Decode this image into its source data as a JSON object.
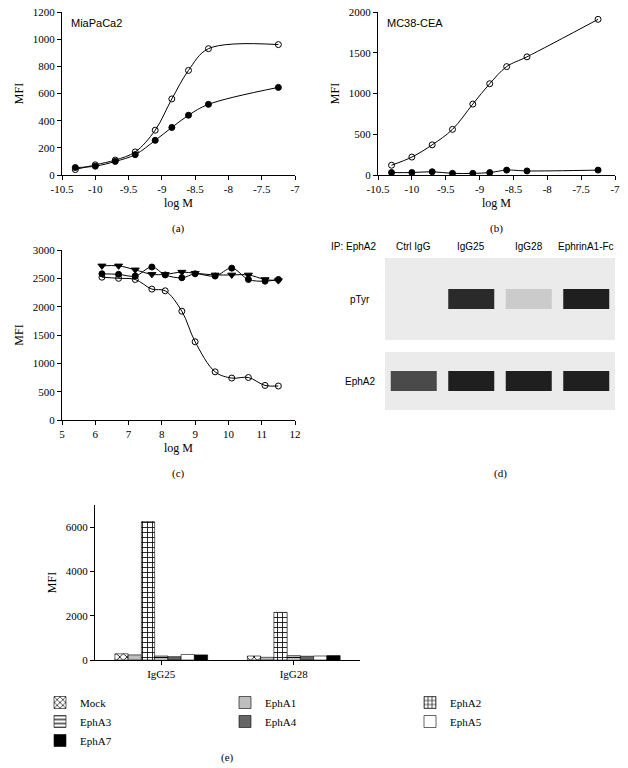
{
  "chart_data": [
    {
      "type": "scatter",
      "panel": "(a)",
      "title": "MiaPaCa2",
      "x_label": "log M",
      "y_label": "MFI",
      "xlim": [
        -10.5,
        -7
      ],
      "xticks": [
        -10.5,
        -10,
        -9.5,
        -9,
        -8.5,
        -8,
        -7.5,
        -7
      ],
      "ylim": [
        0,
        1200
      ],
      "yticks": [
        0,
        200,
        400,
        600,
        800,
        1000,
        1200
      ],
      "x": [
        -10.3,
        -10.0,
        -9.7,
        -9.4,
        -9.1,
        -8.85,
        -8.6,
        -8.3,
        -7.25
      ],
      "series": [
        {
          "color": "#000000",
          "marker": "open_circle",
          "line_style": "spline",
          "values": [
            40,
            75,
            110,
            170,
            330,
            560,
            770,
            930,
            960
          ]
        },
        {
          "color": "#000000",
          "marker": "circle",
          "line_style": "spline",
          "values": [
            55,
            65,
            100,
            150,
            255,
            350,
            440,
            520,
            645
          ]
        }
      ]
    },
    {
      "type": "scatter",
      "panel": "(b)",
      "title": "MC38-CEA",
      "x_label": "log M",
      "y_label": "MFI",
      "xlim": [
        -10.5,
        -7
      ],
      "xticks": [
        -10.5,
        -10,
        -9.5,
        -9,
        -8.5,
        -8,
        -7.5,
        -7
      ],
      "ylim": [
        0,
        2000
      ],
      "yticks": [
        0,
        500,
        1000,
        1500,
        2000
      ],
      "x": [
        -10.3,
        -10.0,
        -9.7,
        -9.4,
        -9.1,
        -8.85,
        -8.6,
        -8.3,
        -7.25
      ],
      "series": [
        {
          "color": "#000000",
          "marker": "open_circle",
          "line_style": "spline",
          "values": [
            120,
            220,
            370,
            560,
            870,
            1120,
            1330,
            1450,
            1910
          ]
        },
        {
          "color": "#000000",
          "marker": "circle",
          "line_style": "spline",
          "values": [
            30,
            30,
            40,
            20,
            20,
            30,
            60,
            50,
            60
          ]
        }
      ]
    },
    {
      "type": "scatter",
      "panel": "(c)",
      "x_label": "log M",
      "y_label": "MFI",
      "xlim": [
        5,
        12
      ],
      "xticks": [
        5,
        6,
        7,
        8,
        9,
        10,
        11,
        12
      ],
      "ylim": [
        0,
        3000
      ],
      "yticks": [
        0,
        500,
        1000,
        1500,
        2000,
        2500,
        3000
      ],
      "x": [
        6.2,
        6.7,
        7.2,
        7.7,
        8.1,
        8.6,
        9.0,
        9.6,
        10.1,
        10.6,
        11.1,
        11.5
      ],
      "series": [
        {
          "color": "#000000",
          "marker": "open_circle",
          "line_style": "spline",
          "values": [
            2520,
            2500,
            2480,
            2310,
            2280,
            1920,
            1380,
            850,
            740,
            750,
            610,
            600
          ]
        },
        {
          "color": "#000000",
          "marker": "circle",
          "line_style": "spline",
          "values": [
            2580,
            2570,
            2540,
            2700,
            2560,
            2510,
            2580,
            2540,
            2680,
            2480,
            2450,
            2480
          ]
        },
        {
          "color": "#000000",
          "marker": "triangle_down",
          "line_style": "spline",
          "values": [
            2720,
            2720,
            2650,
            2570,
            2570,
            2610,
            2590,
            2560,
            2560,
            2560,
            2480,
            2460
          ]
        }
      ]
    },
    {
      "type": "bar",
      "panel": "(e)",
      "y_label": "MFI",
      "legend": "bottom",
      "categories": [
        "IgG25",
        "IgG28"
      ],
      "ylim": [
        0,
        7000
      ],
      "yticks": [
        0,
        2000,
        4000,
        6000
      ],
      "series": [
        {
          "name": "Mock",
          "color": "#ffffff",
          "marker": "crosshatch",
          "values": [
            280,
            180
          ]
        },
        {
          "name": "EphA1",
          "color": "#bdbdbd",
          "marker": "solid",
          "values": [
            230,
            120
          ]
        },
        {
          "name": "EphA2",
          "color": "#ffffff",
          "marker": "checker",
          "values": [
            6250,
            2150
          ]
        },
        {
          "name": "EphA3",
          "color": "#ffffff",
          "marker": "hlines",
          "values": [
            180,
            200
          ]
        },
        {
          "name": "EphA4",
          "color": "#666666",
          "marker": "solid",
          "values": [
            150,
            170
          ]
        },
        {
          "name": "EphA5",
          "color": "#ffffff",
          "marker": "solid",
          "values": [
            250,
            180
          ]
        },
        {
          "name": "EphA7",
          "color": "#000000",
          "marker": "solid",
          "values": [
            230,
            200
          ]
        }
      ]
    }
  ],
  "blot": {
    "panel": "(d)",
    "header": "IP: EphA2",
    "lanes": [
      "Ctrl IgG",
      "IgG25",
      "IgG28",
      "EphrinA1-Fc"
    ],
    "rows": [
      {
        "label": "pTyr",
        "band_intensity": [
          0.0,
          0.9,
          0.15,
          0.95
        ]
      },
      {
        "label": "EphA2",
        "band_intensity": [
          0.75,
          0.95,
          0.95,
          0.95
        ]
      }
    ]
  }
}
